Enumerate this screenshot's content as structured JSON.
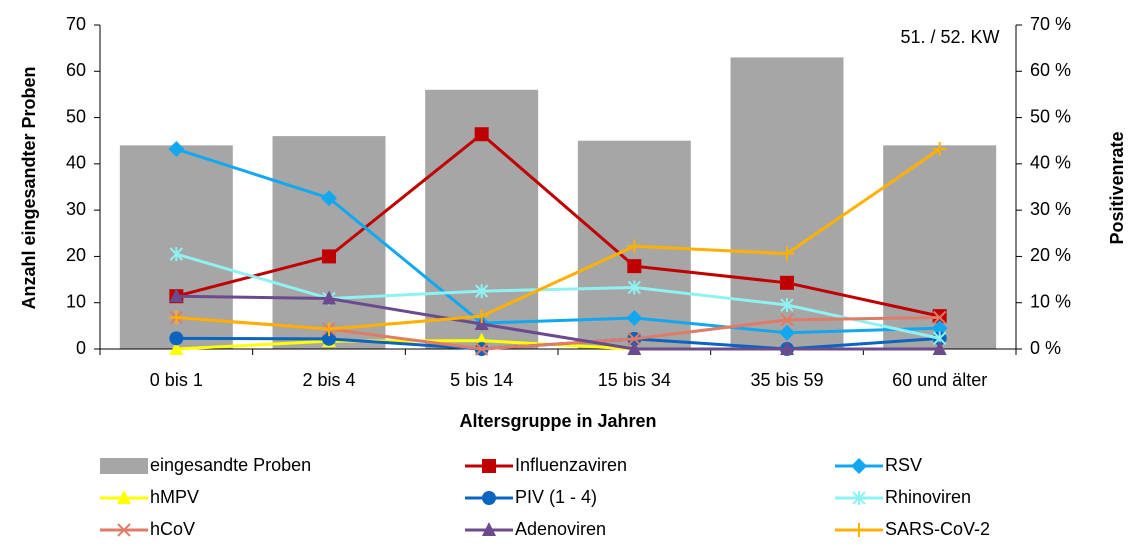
{
  "chart_data": {
    "type": "bar+line",
    "annotation": "51. / 52. KW",
    "x_label": "Altersgruppe in Jahren",
    "y_label": "Anzahl eingesandter Proben",
    "y2_label": "Positivenrate",
    "categories": [
      "0 bis 1",
      "2 bis 4",
      "5 bis 14",
      "15 bis 34",
      "35 bis 59",
      "60 und älter"
    ],
    "ylim": [
      0,
      70
    ],
    "yticks": [
      0,
      10,
      20,
      30,
      40,
      50,
      60,
      70
    ],
    "y2lim": [
      0,
      70
    ],
    "y2ticks": [
      {
        "value": 0,
        "label": "0 %"
      },
      {
        "value": 10,
        "label": "10 %"
      },
      {
        "value": 20,
        "label": "20 %"
      },
      {
        "value": 30,
        "label": "30 %"
      },
      {
        "value": 40,
        "label": "40 %"
      },
      {
        "value": 50,
        "label": "50 %"
      },
      {
        "value": 60,
        "label": "60 %"
      },
      {
        "value": 70,
        "label": "70 %"
      }
    ],
    "series": [
      {
        "name": "eingesandte Proben",
        "kind": "bar",
        "color": "#a6a6a6",
        "values": [
          44,
          46,
          56,
          45,
          63,
          44
        ]
      },
      {
        "name": "Influenzaviren",
        "kind": "line",
        "axis": "y2",
        "marker": "square",
        "color": "#c00000",
        "values": [
          11.4,
          20,
          46.4,
          17.9,
          14.3,
          7.1
        ]
      },
      {
        "name": "RSV",
        "kind": "line",
        "axis": "y2",
        "marker": "diamond",
        "color": "#12a8f0",
        "values": [
          43.2,
          32.6,
          5.6,
          6.7,
          3.5,
          4.5
        ]
      },
      {
        "name": "hMPV",
        "kind": "line",
        "axis": "y2",
        "marker": "triangle",
        "color": "#ffff00",
        "values": [
          0,
          1.7,
          1.8,
          0,
          0,
          0
        ]
      },
      {
        "name": "PIV (1 - 4)",
        "kind": "line",
        "axis": "y2",
        "marker": "circle",
        "color": "#0b64c0",
        "values": [
          2.3,
          2.2,
          0,
          2.2,
          0,
          2.3
        ]
      },
      {
        "name": "Rhinoviren",
        "kind": "line",
        "axis": "y2",
        "marker": "asterisk",
        "color": "#8ff2f2",
        "values": [
          20.5,
          10.9,
          12.5,
          13.3,
          9.5,
          2.3
        ]
      },
      {
        "name": "hCoV",
        "kind": "line",
        "axis": "y2",
        "marker": "cross",
        "color": "#e27b66",
        "values": [
          6.8,
          4.3,
          0,
          2.2,
          6.3,
          6.8
        ]
      },
      {
        "name": "Adenoviren",
        "kind": "line",
        "axis": "y2",
        "marker": "triangle",
        "color": "#6b4a8e",
        "values": [
          11.4,
          10.9,
          5.4,
          0,
          0,
          0
        ]
      },
      {
        "name": "SARS-CoV-2",
        "kind": "line",
        "axis": "y2",
        "marker": "plus",
        "color": "#ffb000",
        "values": [
          6.8,
          4.3,
          7.1,
          22.2,
          20.6,
          43.2
        ]
      }
    ]
  }
}
